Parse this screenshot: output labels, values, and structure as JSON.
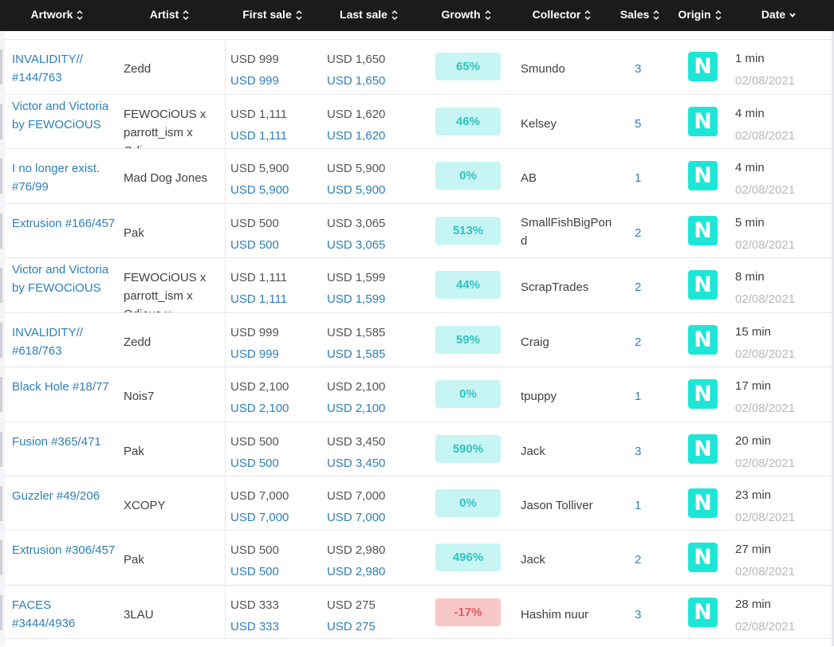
{
  "columns": [
    {
      "label": "Artwork"
    },
    {
      "label": "Artist"
    },
    {
      "label": "First sale"
    },
    {
      "label": "Last sale"
    },
    {
      "label": "Growth"
    },
    {
      "label": "Collector"
    },
    {
      "label": "Sales"
    },
    {
      "label": "Origin"
    },
    {
      "label": "Date"
    }
  ],
  "rows": [
    {
      "artwork": "INVALIDITY// #144/763",
      "artist": "Zedd",
      "first_sale": "USD 999",
      "first_sale_link": "USD 999",
      "last_sale": "USD 1,650",
      "last_sale_link": "USD 1,650",
      "growth": "65%",
      "growth_negative": false,
      "collector": "Smundo",
      "sales": "3",
      "origin": "N",
      "time": "1 min",
      "date": "02/08/2021"
    },
    {
      "artwork": "Victor and Victoria by FEWOCiOUS",
      "artist": "FEWOCiOUS x parrott_ism x Odious x",
      "first_sale": "USD 1,111",
      "first_sale_link": "USD 1,111",
      "last_sale": "USD 1,620",
      "last_sale_link": "USD 1,620",
      "growth": "46%",
      "growth_negative": false,
      "collector": "Kelsey",
      "sales": "5",
      "origin": "N",
      "time": "4 min",
      "date": "02/08/2021"
    },
    {
      "artwork": "I no longer exist. #76/99",
      "artist": "Mad Dog Jones",
      "first_sale": "USD 5,900",
      "first_sale_link": "USD 5,900",
      "last_sale": "USD 5,900",
      "last_sale_link": "USD 5,900",
      "growth": "0%",
      "growth_negative": false,
      "collector": "AB",
      "sales": "1",
      "origin": "N",
      "time": "4 min",
      "date": "02/08/2021"
    },
    {
      "artwork": "Extrusion #166/457",
      "artist": "Pak",
      "first_sale": "USD 500",
      "first_sale_link": "USD 500",
      "last_sale": "USD 3,065",
      "last_sale_link": "USD 3,065",
      "growth": "513%",
      "growth_negative": false,
      "collector": "SmallFishBigPond",
      "sales": "2",
      "origin": "N",
      "time": "5 min",
      "date": "02/08/2021"
    },
    {
      "artwork": "Victor and Victoria by FEWOCiOUS",
      "artist": "FEWOCiOUS x parrott_ism x Odious x",
      "first_sale": "USD 1,111",
      "first_sale_link": "USD 1,111",
      "last_sale": "USD 1,599",
      "last_sale_link": "USD 1,599",
      "growth": "44%",
      "growth_negative": false,
      "collector": "ScrapTrades",
      "sales": "2",
      "origin": "N",
      "time": "8 min",
      "date": "02/08/2021"
    },
    {
      "artwork": "INVALIDITY// #618/763",
      "artist": "Zedd",
      "first_sale": "USD 999",
      "first_sale_link": "USD 999",
      "last_sale": "USD 1,585",
      "last_sale_link": "USD 1,585",
      "growth": "59%",
      "growth_negative": false,
      "collector": "Craig",
      "sales": "2",
      "origin": "N",
      "time": "15 min",
      "date": "02/08/2021"
    },
    {
      "artwork": "Black Hole #18/77",
      "artist": "Nois7",
      "first_sale": "USD 2,100",
      "first_sale_link": "USD 2,100",
      "last_sale": "USD 2,100",
      "last_sale_link": "USD 2,100",
      "growth": "0%",
      "growth_negative": false,
      "collector": "tpuppy",
      "sales": "1",
      "origin": "N",
      "time": "17 min",
      "date": "02/08/2021"
    },
    {
      "artwork": "Fusion #365/471",
      "artist": "Pak",
      "first_sale": "USD 500",
      "first_sale_link": "USD 500",
      "last_sale": "USD 3,450",
      "last_sale_link": "USD 3,450",
      "growth": "590%",
      "growth_negative": false,
      "collector": "Jack",
      "sales": "3",
      "origin": "N",
      "time": "20 min",
      "date": "02/08/2021"
    },
    {
      "artwork": "Guzzler #49/206",
      "artist": "XCOPY",
      "first_sale": "USD 7,000",
      "first_sale_link": "USD 7,000",
      "last_sale": "USD 7,000",
      "last_sale_link": "USD 7,000",
      "growth": "0%",
      "growth_negative": false,
      "collector": "Jason Tolliver",
      "sales": "1",
      "origin": "N",
      "time": "23 min",
      "date": "02/08/2021"
    },
    {
      "artwork": "Extrusion #306/457",
      "artist": "Pak",
      "first_sale": "USD 500",
      "first_sale_link": "USD 500",
      "last_sale": "USD 2,980",
      "last_sale_link": "USD 2,980",
      "growth": "496%",
      "growth_negative": false,
      "collector": "Jack",
      "sales": "2",
      "origin": "N",
      "time": "27 min",
      "date": "02/08/2021"
    },
    {
      "artwork": "FACES #3444/4936",
      "artist": "3LAU",
      "first_sale": "USD 333",
      "first_sale_link": "USD 333",
      "last_sale": "USD 275",
      "last_sale_link": "USD 275",
      "growth": "-17%",
      "growth_negative": true,
      "collector": "Hashim nuur",
      "sales": "3",
      "origin": "N",
      "time": "28 min",
      "date": "02/08/2021"
    }
  ],
  "partial_row_artwork": "",
  "colors": {
    "accent": "#2f7fb8",
    "growth_bg": "#c7f5f3",
    "growth_text": "#2fc4c2",
    "negative_bg": "#f8c7c7",
    "negative_text": "#e45b5b",
    "origin_bg": "#1de6d6",
    "header_bg": "#1b1b1b"
  }
}
